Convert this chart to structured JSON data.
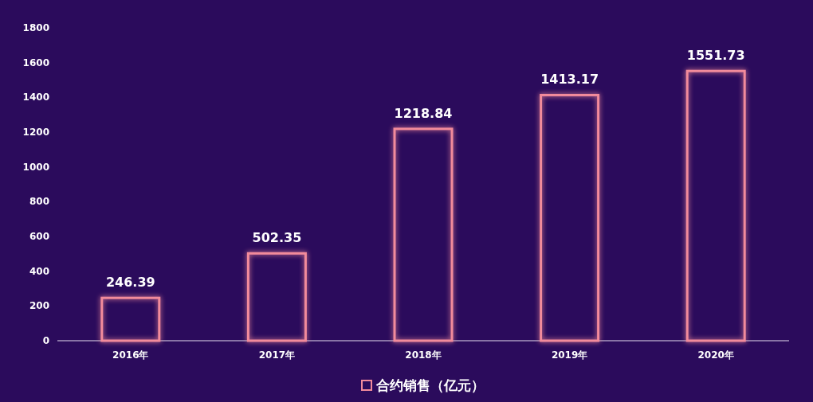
{
  "chart_data": {
    "type": "bar",
    "categories": [
      "2016年",
      "2017年",
      "2018年",
      "2019年",
      "2020年"
    ],
    "series": [
      {
        "name": "合约销售（亿元）",
        "color": "#f28b9b",
        "values": [
          246.39,
          502.35,
          1218.84,
          1413.17,
          1551.73
        ]
      }
    ],
    "ylim": [
      0,
      1800
    ],
    "yticks": [
      0,
      200,
      400,
      600,
      800,
      1000,
      1200,
      1400,
      1600,
      1800
    ],
    "data_labels": true,
    "legend": "bottom",
    "grid": false
  }
}
